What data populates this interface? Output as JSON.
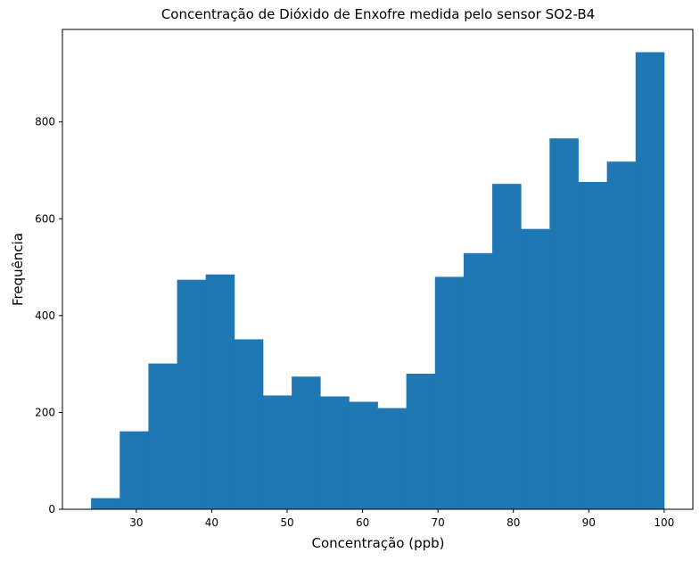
{
  "chart_data": {
    "type": "bar",
    "title": "Concentração de Dióxido de Enxofre medida pelo sensor SO2-B4",
    "xlabel": "Concentração (ppb)",
    "ylabel": "Frequência",
    "bin_edges": [
      24.0,
      27.8,
      31.6,
      35.4,
      39.2,
      43.0,
      46.8,
      50.6,
      54.4,
      58.2,
      62.0,
      65.8,
      69.6,
      73.4,
      77.2,
      81.0,
      84.8,
      88.6,
      92.4,
      96.2,
      100.0
    ],
    "values": [
      23,
      161,
      301,
      474,
      485,
      351,
      235,
      274,
      233,
      222,
      209,
      280,
      480,
      529,
      672,
      579,
      766,
      676,
      718,
      944
    ],
    "xlim": [
      20.2,
      103.8
    ],
    "ylim": [
      0,
      991
    ],
    "xticks": [
      30,
      40,
      50,
      60,
      70,
      80,
      90,
      100
    ],
    "yticks": [
      0,
      200,
      400,
      600,
      800
    ],
    "bar_color": "#1f77b4",
    "grid": false,
    "legend": "none"
  }
}
